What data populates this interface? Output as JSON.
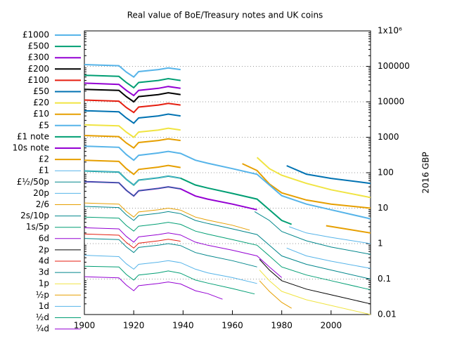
{
  "chart_data": {
    "type": "line",
    "title": "Real value of BoE/Treasury notes and UK coins",
    "y_label": "2016 GBP",
    "log_y": true,
    "grid": true,
    "legend": "left",
    "xlim": [
      1900,
      2016
    ],
    "xticks": [
      1900,
      1920,
      1940,
      1960,
      1980,
      2000
    ],
    "ylim": [
      0.01,
      1000000
    ],
    "yticks": [
      0.01,
      0.1,
      1,
      10,
      100,
      1000,
      10000,
      100000,
      {
        "value": 1000000,
        "label": "1x10⁶"
      }
    ],
    "series": [
      {
        "name": "£1000",
        "color": "#56b4e9",
        "x": [
          1900,
          1914,
          1917,
          1920,
          1922,
          1930,
          1934,
          1939
        ],
        "values": [
          112000,
          104000,
          69000,
          50000,
          71000,
          81000,
          90000,
          81000
        ]
      },
      {
        "name": "£500",
        "color": "#009e73",
        "x": [
          1900,
          1914,
          1917,
          1920,
          1922,
          1930,
          1934,
          1939
        ],
        "values": [
          56000,
          52000,
          35000,
          25000,
          35000,
          40000,
          45000,
          40000
        ]
      },
      {
        "name": "£300",
        "color": "#9400d3",
        "x": [
          1900,
          1914,
          1917,
          1920,
          1922,
          1930,
          1934,
          1939
        ],
        "values": [
          33600,
          31000,
          21000,
          15000,
          21000,
          24000,
          27000,
          24000
        ]
      },
      {
        "name": "£200",
        "color": "#000000",
        "x": [
          1900,
          1914,
          1917,
          1920,
          1922,
          1930,
          1934,
          1939
        ],
        "values": [
          22400,
          21000,
          14000,
          10000,
          14000,
          16000,
          18000,
          16000
        ]
      },
      {
        "name": "£100",
        "color": "#e51e10",
        "x": [
          1900,
          1914,
          1917,
          1920,
          1922,
          1930,
          1934,
          1939
        ],
        "values": [
          11200,
          10400,
          6900,
          5000,
          7100,
          8100,
          9000,
          8100
        ]
      },
      {
        "name": "£50",
        "color": "#0072b2",
        "x": [
          1900,
          1914,
          1917,
          1920,
          1922,
          1930,
          1934,
          1939,
          1960,
          1982,
          1990,
          2000,
          2016
        ],
        "values": [
          5600,
          5200,
          3500,
          2500,
          3500,
          4000,
          4500,
          4000,
          null,
          158,
          91,
          69,
          50
        ]
      },
      {
        "name": "£20",
        "color": "#f0e442",
        "x": [
          1900,
          1914,
          1917,
          1920,
          1922,
          1930,
          1934,
          1939,
          1960,
          1970,
          1975,
          1980,
          1990,
          2000,
          2016
        ],
        "values": [
          2240,
          2100,
          1400,
          1000,
          1400,
          1600,
          1800,
          1600,
          null,
          270,
          130,
          85,
          50,
          33,
          20
        ]
      },
      {
        "name": "£10",
        "color": "#e69f00",
        "x": [
          1900,
          1914,
          1917,
          1920,
          1922,
          1930,
          1934,
          1939,
          1950,
          1964,
          1970,
          1975,
          1980,
          1990,
          2000,
          2016
        ],
        "values": [
          1120,
          1040,
          690,
          500,
          710,
          810,
          900,
          810,
          null,
          180,
          115,
          48,
          27,
          17,
          13,
          10
        ]
      },
      {
        "name": "£5",
        "color": "#56b4e9",
        "x": [
          1900,
          1914,
          1917,
          1920,
          1922,
          1930,
          1934,
          1939,
          1945,
          1950,
          1960,
          1970,
          1975,
          1980,
          1990,
          2000,
          2016
        ],
        "values": [
          560,
          520,
          325,
          225,
          310,
          360,
          400,
          350,
          225,
          185,
          130,
          90,
          45,
          22.5,
          13,
          9,
          5
        ]
      },
      {
        "name": "£1 note",
        "color": "#009e73",
        "x": [
          1900,
          1914,
          1917,
          1920,
          1922,
          1930,
          1934,
          1939,
          1945,
          1950,
          1960,
          1970,
          1975,
          1980,
          1984
        ],
        "values": [
          112,
          104,
          65,
          45,
          62,
          72,
          80,
          70,
          45,
          37,
          26,
          18,
          9,
          4.5,
          3.5
        ]
      },
      {
        "name": "10s note",
        "color": "#9400d3",
        "x": [
          1900,
          1914,
          1917,
          1920,
          1922,
          1930,
          1934,
          1939,
          1945,
          1950,
          1960,
          1970
        ],
        "values": [
          56,
          52,
          32,
          22,
          31,
          36,
          40,
          35,
          22,
          18,
          13,
          9
        ]
      },
      {
        "name": "£2",
        "color": "#e69f00",
        "x": [
          1900,
          1914,
          1917,
          1920,
          1922,
          1930,
          1934,
          1939,
          1960,
          1998,
          2016
        ],
        "values": [
          224,
          208,
          130,
          90,
          124,
          144,
          160,
          140,
          null,
          3.2,
          2
        ]
      },
      {
        "name": "£1",
        "color": "#56b4e9",
        "x": [
          1900,
          1914,
          1917,
          1920,
          1922,
          1930,
          1934,
          1939,
          1960,
          1983,
          1990,
          2000,
          2016
        ],
        "values": [
          112,
          104,
          65,
          45,
          62,
          72,
          80,
          70,
          null,
          3,
          2,
          1.5,
          1
        ]
      },
      {
        "name": "£½/50p",
        "color": "#00868b",
        "x": [
          1900,
          1914,
          1917,
          1920,
          1922,
          1930,
          1934,
          1939,
          1950,
          1969,
          1975,
          1980,
          1990,
          2000,
          2016
        ],
        "values": [
          56,
          52,
          32,
          22,
          31,
          36,
          40,
          35,
          null,
          8,
          4.5,
          2.2,
          1.2,
          0.8,
          0.5
        ]
      },
      {
        "name": "20p",
        "color": "#56b4e9",
        "x": [
          1982,
          1990,
          2000,
          2016
        ],
        "values": [
          0.75,
          0.45,
          0.32,
          0.2
        ]
      },
      {
        "name": "2/6",
        "color": "#e69f00",
        "x": [
          1900,
          1914,
          1917,
          1920,
          1922,
          1930,
          1934,
          1939,
          1945,
          1950,
          1960,
          1967
        ],
        "values": [
          14,
          13,
          8.1,
          5.6,
          7.8,
          9,
          10,
          8.8,
          5.6,
          4.6,
          3.3,
          2.4
        ]
      },
      {
        "name": "2s/10p",
        "color": "#00868b",
        "x": [
          1900,
          1914,
          1917,
          1920,
          1922,
          1930,
          1934,
          1939,
          1945,
          1950,
          1960,
          1970,
          1975,
          1980,
          1990,
          2000,
          2016
        ],
        "values": [
          11.2,
          10.4,
          6.5,
          4.5,
          6.2,
          7.2,
          8,
          7,
          4.5,
          3.7,
          2.6,
          1.8,
          0.9,
          0.45,
          0.26,
          0.18,
          0.1
        ]
      },
      {
        "name": "1s/5p",
        "color": "#009e73",
        "x": [
          1900,
          1914,
          1917,
          1920,
          1922,
          1930,
          1934,
          1939,
          1945,
          1950,
          1960,
          1970,
          1975,
          1980,
          1990,
          2000,
          2016
        ],
        "values": [
          5.6,
          5.2,
          3.25,
          2.25,
          3.1,
          3.6,
          4,
          3.5,
          2.25,
          1.85,
          1.3,
          0.9,
          0.45,
          0.22,
          0.13,
          0.09,
          0.05
        ]
      },
      {
        "name": "6d",
        "color": "#9400d3",
        "x": [
          1900,
          1914,
          1917,
          1920,
          1922,
          1930,
          1934,
          1939,
          1945,
          1950,
          1960,
          1970,
          1975,
          1980
        ],
        "values": [
          2.8,
          2.6,
          1.6,
          1.1,
          1.55,
          1.8,
          2,
          1.75,
          1.1,
          0.9,
          0.65,
          0.45,
          0.22,
          0.11
        ]
      },
      {
        "name": "2p",
        "color": "#000000",
        "x": [
          1971,
          1975,
          1980,
          1990,
          2000,
          2016
        ],
        "values": [
          0.36,
          0.18,
          0.09,
          0.052,
          0.036,
          0.02
        ]
      },
      {
        "name": "4d",
        "color": "#e51e10",
        "x": [
          1900,
          1914,
          1917,
          1920,
          1922,
          1930,
          1934,
          1939
        ],
        "values": [
          1.87,
          1.73,
          1.08,
          0.75,
          1.03,
          1.2,
          1.33,
          1.17
        ]
      },
      {
        "name": "3d",
        "color": "#00868b",
        "x": [
          1900,
          1914,
          1917,
          1920,
          1922,
          1930,
          1934,
          1939,
          1945,
          1950,
          1960,
          1970
        ],
        "values": [
          1.4,
          1.3,
          0.81,
          0.56,
          0.78,
          0.9,
          1,
          0.88,
          0.56,
          0.46,
          0.33,
          0.22
        ]
      },
      {
        "name": "1p",
        "color": "#f0e442",
        "x": [
          1971,
          1975,
          1980,
          1990,
          2000,
          2016
        ],
        "values": [
          0.18,
          0.09,
          0.045,
          0.026,
          0.018,
          0.01
        ]
      },
      {
        "name": "½p",
        "color": "#e69f00",
        "x": [
          1971,
          1975,
          1980,
          1984
        ],
        "values": [
          0.09,
          0.045,
          0.022,
          0.015
        ]
      },
      {
        "name": "1d",
        "color": "#56b4e9",
        "x": [
          1900,
          1914,
          1917,
          1920,
          1922,
          1930,
          1934,
          1939,
          1945,
          1950,
          1960,
          1970
        ],
        "values": [
          0.47,
          0.43,
          0.27,
          0.19,
          0.26,
          0.3,
          0.33,
          0.29,
          0.19,
          0.15,
          0.11,
          0.075
        ]
      },
      {
        "name": "½d",
        "color": "#009e73",
        "x": [
          1900,
          1914,
          1917,
          1920,
          1922,
          1930,
          1934,
          1939,
          1945,
          1950,
          1960,
          1969
        ],
        "values": [
          0.23,
          0.22,
          0.135,
          0.094,
          0.13,
          0.15,
          0.17,
          0.146,
          0.094,
          0.077,
          0.054,
          0.038
        ]
      },
      {
        "name": "¼d",
        "color": "#9400d3",
        "x": [
          1900,
          1914,
          1917,
          1920,
          1922,
          1930,
          1934,
          1939,
          1945,
          1950,
          1956
        ],
        "values": [
          0.117,
          0.108,
          0.068,
          0.047,
          0.065,
          0.075,
          0.083,
          0.073,
          0.047,
          0.039,
          0.027
        ]
      }
    ]
  }
}
